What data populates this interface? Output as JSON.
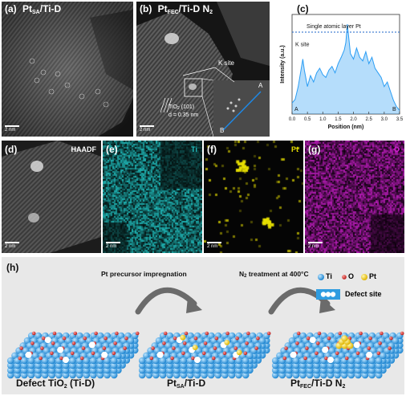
{
  "panel_a": {
    "label": "(a)",
    "title_main": "Pt",
    "title_sub": "SA",
    "title_rest": "/Ti-D",
    "scale": "2 nm"
  },
  "panel_b": {
    "label": "(b)",
    "title_main": "Pt",
    "title_sub": "FEC",
    "title_rest": "/Ti-D N",
    "title_sub2": "2",
    "k_site": "K site",
    "tio2_main": "TiO",
    "tio2_sub": "2",
    "tio2_rest": " (101)",
    "d_spacing": "d = 0.35 nm",
    "marker_a": "A",
    "marker_b": "B",
    "scale": "2 nm"
  },
  "panel_c": {
    "label": "(c)",
    "chart_data": {
      "type": "line",
      "xlabel": "Position (nm)",
      "ylabel": "Intensity (a.u.)",
      "xlim": [
        0.0,
        3.5
      ],
      "xticks": [
        "0.0",
        "0.5",
        "1.0",
        "1.5",
        "2.0",
        "2.5",
        "3.0",
        "3.5"
      ],
      "annotations": [
        "Single atomic layer Pt",
        "K site",
        "A",
        "B"
      ],
      "x": [
        0.0,
        0.1,
        0.2,
        0.3,
        0.35,
        0.4,
        0.5,
        0.6,
        0.7,
        0.8,
        0.9,
        1.0,
        1.1,
        1.2,
        1.3,
        1.4,
        1.5,
        1.6,
        1.7,
        1.75,
        1.8,
        1.85,
        1.9,
        2.0,
        2.1,
        2.2,
        2.3,
        2.4,
        2.5,
        2.6,
        2.7,
        2.8,
        2.9,
        3.0,
        3.1,
        3.2,
        3.3,
        3.4,
        3.5
      ],
      "y": [
        0.12,
        0.16,
        0.3,
        0.5,
        0.6,
        0.48,
        0.3,
        0.42,
        0.35,
        0.45,
        0.5,
        0.43,
        0.4,
        0.48,
        0.52,
        0.45,
        0.55,
        0.62,
        0.7,
        0.78,
        0.98,
        0.82,
        0.66,
        0.6,
        0.72,
        0.62,
        0.58,
        0.68,
        0.55,
        0.62,
        0.5,
        0.45,
        0.4,
        0.3,
        0.35,
        0.25,
        0.15,
        0.08,
        0.04
      ]
    }
  },
  "panel_d": {
    "label": "(d)",
    "tag": "HAADF",
    "scale": "2 nm"
  },
  "panel_e": {
    "label": "(e)",
    "tag": "Ti",
    "scale": "2 nm"
  },
  "panel_f": {
    "label": "(f)",
    "tag": "Pt",
    "scale": "2 nm"
  },
  "panel_g": {
    "label": "(g)",
    "tag": "O",
    "scale": "2 nm"
  },
  "panel_h": {
    "label": "(h)",
    "step1": "Pt precursor impregnation",
    "step2_main": "N",
    "step2_sub": "2",
    "step2_rest": " treatment at 400°C",
    "legend": {
      "ti": "Ti",
      "o": "O",
      "pt": "Pt",
      "defect": "Defect site"
    },
    "cap1_main": "Defect TiO",
    "cap1_sub": "2",
    "cap1_rest": " (Ti-D)",
    "cap2_main": "Pt",
    "cap2_sub": "SA",
    "cap2_rest": "/Ti-D",
    "cap3_main": "Pt",
    "cap3_sub": "FEC",
    "cap3_rest": "/Ti-D N",
    "cap3_sub2": "2"
  },
  "colors": {
    "ti": "#3aa3e6",
    "o": "#d4302b",
    "pt": "#f2cf2a",
    "ti_map": "#22c7c7",
    "pt_map": "#e8e000",
    "o_map": "#d020d0",
    "profile": "#2a9df4"
  }
}
